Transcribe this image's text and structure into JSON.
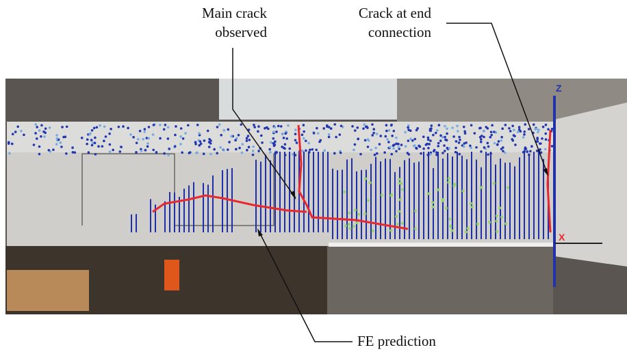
{
  "labels": {
    "main_crack": [
      "Main crack",
      "observed"
    ],
    "end_crack": [
      "Crack at end",
      "connection"
    ],
    "fe_prediction": "FE prediction"
  },
  "axes": {
    "z": "Z",
    "x": "X"
  }
}
